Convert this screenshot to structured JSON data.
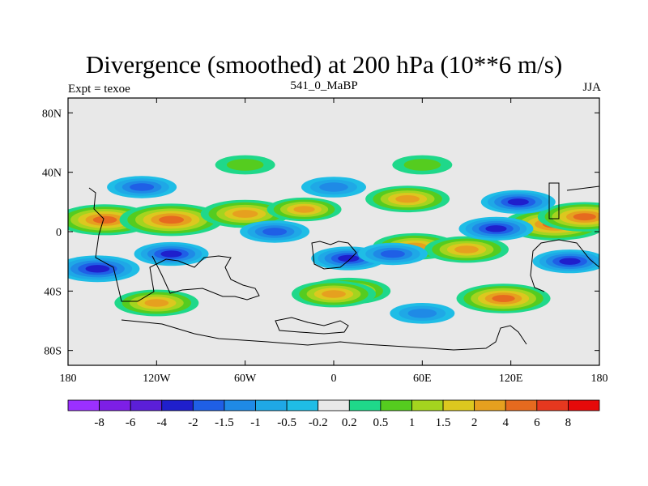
{
  "figure": {
    "title": "Divergence (smoothed) at 200 hPa (10**6 m/s)",
    "subtitle": "541_0_MaBP",
    "left_label": "Expt = texoe",
    "right_label": "JJA"
  },
  "chart_data": {
    "type": "filled-contour-map",
    "title": "Divergence (smoothed) at 200 hPa (10**6 m/s)",
    "projection": "cylindrical-equidistant",
    "lon_range": [
      -180,
      180
    ],
    "lat_range": [
      -90,
      90
    ],
    "x_ticks": [
      {
        "lon": -180,
        "label": "180"
      },
      {
        "lon": -120,
        "label": "120W"
      },
      {
        "lon": -60,
        "label": "60W"
      },
      {
        "lon": 0,
        "label": "0"
      },
      {
        "lon": 60,
        "label": "60E"
      },
      {
        "lon": 120,
        "label": "120E"
      },
      {
        "lon": 180,
        "label": "180"
      }
    ],
    "y_ticks": [
      {
        "lat": 80,
        "label": "80N"
      },
      {
        "lat": 40,
        "label": "40N"
      },
      {
        "lat": 0,
        "label": "0"
      },
      {
        "lat": -40,
        "label": "40S"
      },
      {
        "lat": -80,
        "label": "80S"
      }
    ],
    "colorbar": {
      "levels": [
        "-8",
        "-6",
        "-4",
        "-2",
        "-1.5",
        "-1",
        "-0.5",
        "-0.2",
        "0.2",
        "0.5",
        "1",
        "1.5",
        "2",
        "4",
        "6",
        "8"
      ],
      "colors": [
        "#9b30ff",
        "#7d1fe6",
        "#5b1fd8",
        "#1f1fcc",
        "#1f5fe6",
        "#1f8ae6",
        "#1fa8e6",
        "#1fbde6",
        "#e8e8e8",
        "#1fd88a",
        "#55cc1f",
        "#a4d41f",
        "#dcc81f",
        "#e6a01f",
        "#e66a1f",
        "#e6381f",
        "#e60a0a"
      ]
    },
    "anomalies": [
      {
        "lon": -155,
        "lat": 8,
        "value": 4.5
      },
      {
        "lon": -110,
        "lat": 8,
        "value": 5
      },
      {
        "lon": -60,
        "lat": 12,
        "value": 3.5
      },
      {
        "lon": -20,
        "lat": 15,
        "value": 2
      },
      {
        "lon": 50,
        "lat": 22,
        "value": 3
      },
      {
        "lon": 150,
        "lat": 5,
        "value": 5
      },
      {
        "lon": 170,
        "lat": 10,
        "value": 4
      },
      {
        "lon": 55,
        "lat": -10,
        "value": 3
      },
      {
        "lon": 90,
        "lat": -12,
        "value": 3
      },
      {
        "lon": 10,
        "lat": -40,
        "value": 3
      },
      {
        "lon": 115,
        "lat": -45,
        "value": 4
      },
      {
        "lon": -120,
        "lat": -48,
        "value": 3
      },
      {
        "lon": 0,
        "lat": -42,
        "value": 3
      },
      {
        "lon": 125,
        "lat": 20,
        "value": -2
      },
      {
        "lon": -160,
        "lat": -25,
        "value": -3
      },
      {
        "lon": -110,
        "lat": -15,
        "value": -2
      },
      {
        "lon": 10,
        "lat": -18,
        "value": -2
      },
      {
        "lon": 40,
        "lat": -15,
        "value": -1.5
      },
      {
        "lon": 110,
        "lat": 2,
        "value": -2
      },
      {
        "lon": -130,
        "lat": 30,
        "value": -1.5
      },
      {
        "lon": 0,
        "lat": 30,
        "value": -1
      },
      {
        "lon": -40,
        "lat": 0,
        "value": -1.5
      },
      {
        "lon": 160,
        "lat": -20,
        "value": -2
      },
      {
        "lon": 60,
        "lat": -55,
        "value": -1
      },
      {
        "lon": -60,
        "lat": 45,
        "value": 0.5
      },
      {
        "lon": 60,
        "lat": 45,
        "value": 0.5
      }
    ]
  }
}
